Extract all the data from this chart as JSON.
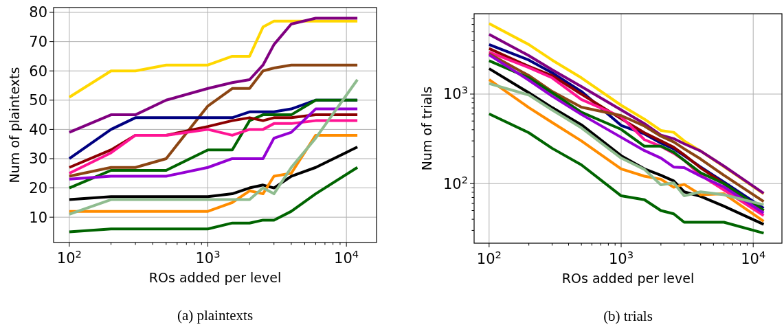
{
  "chart_data": [
    {
      "type": "line",
      "title": "(a) plaintexts",
      "xlabel": "ROs added per level",
      "ylabel": "Num of plaintexts",
      "log": "x",
      "grid": true,
      "marker": "none",
      "line_style": "solid",
      "x": [
        100,
        200,
        300,
        500,
        1000,
        1500,
        2000,
        2500,
        3000,
        4000,
        6000,
        12000
      ],
      "xlim": [
        77,
        16500
      ],
      "ylim": [
        1.35,
        81.65
      ],
      "xticks": [
        {
          "value": 100,
          "label": "10$^{2}$"
        },
        {
          "value": 200,
          "label": null
        },
        {
          "value": 300,
          "label": null
        },
        {
          "value": 400,
          "label": null
        },
        {
          "value": 500,
          "label": null
        },
        {
          "value": 600,
          "label": null
        },
        {
          "value": 700,
          "label": null
        },
        {
          "value": 800,
          "label": null
        },
        {
          "value": 900,
          "label": null
        },
        {
          "value": 1000,
          "label": "10$^{3}$"
        },
        {
          "value": 2000,
          "label": null
        },
        {
          "value": 3000,
          "label": null
        },
        {
          "value": 4000,
          "label": null
        },
        {
          "value": 5000,
          "label": null
        },
        {
          "value": 6000,
          "label": null
        },
        {
          "value": 7000,
          "label": null
        },
        {
          "value": 8000,
          "label": null
        },
        {
          "value": 9000,
          "label": null
        },
        {
          "value": 10000,
          "label": "10$^{4}$"
        }
      ],
      "yticks": [
        10,
        20,
        30,
        40,
        50,
        60,
        70,
        80
      ],
      "series": [
        {
          "color": "#ffd700",
          "values": [
            51,
            60,
            60,
            62,
            62,
            65,
            65,
            75,
            77,
            77,
            77,
            77
          ]
        },
        {
          "color": "#800080",
          "values": [
            39,
            45,
            45,
            50,
            54,
            56,
            57,
            62,
            69,
            76,
            78,
            78
          ]
        },
        {
          "color": "#8b4513",
          "values": [
            24,
            27,
            27,
            30,
            48,
            54,
            54,
            60,
            61,
            62,
            62,
            62
          ]
        },
        {
          "color": "#000080",
          "values": [
            30,
            40,
            44,
            44,
            44,
            44,
            46,
            46,
            46,
            47,
            50,
            50
          ]
        },
        {
          "color": "#006400",
          "values": [
            20,
            26,
            26,
            26,
            33,
            33,
            43,
            45,
            45,
            45,
            50,
            50
          ]
        },
        {
          "color": "#8b0000",
          "values": [
            27,
            33,
            38,
            38,
            41,
            43,
            44,
            43,
            44,
            44,
            45,
            45
          ]
        },
        {
          "color": "#ff1493",
          "values": [
            25,
            32,
            38,
            38,
            40,
            38,
            40,
            40,
            42,
            42,
            43,
            43
          ]
        },
        {
          "color": "#9400d3",
          "values": [
            23,
            24,
            24,
            24,
            27,
            30,
            30,
            30,
            37,
            39,
            47,
            47
          ]
        },
        {
          "color": "#000000",
          "values": [
            16,
            17,
            17,
            17,
            17,
            18,
            20,
            21,
            20,
            24,
            27,
            34
          ]
        },
        {
          "color": "#ff8c00",
          "values": [
            12,
            12,
            12,
            12,
            12,
            15,
            19,
            18,
            24,
            25,
            38,
            38
          ]
        },
        {
          "color": "#8fbc8f",
          "values": [
            11,
            16,
            16,
            16,
            16,
            16,
            16,
            20,
            18,
            27,
            37,
            57
          ]
        },
        {
          "color": "#006400",
          "values": [
            5,
            6,
            6,
            6,
            6,
            8,
            8,
            9,
            9,
            12,
            18,
            27
          ]
        }
      ]
    },
    {
      "type": "line",
      "title": "(b) trials",
      "xlabel": "ROs added per level",
      "ylabel": "Num of trials",
      "log": "xy",
      "grid": true,
      "marker": "none",
      "line_style": "solid",
      "x": [
        100,
        200,
        300,
        500,
        1000,
        1500,
        2000,
        2500,
        3000,
        4000,
        6000,
        12000
      ],
      "xlim": [
        77,
        16500
      ],
      "ylim": [
        21.6,
        7900
      ],
      "xticks": [
        {
          "value": 100,
          "label": "10$^{2}$"
        },
        {
          "value": 200,
          "label": null
        },
        {
          "value": 300,
          "label": null
        },
        {
          "value": 400,
          "label": null
        },
        {
          "value": 500,
          "label": null
        },
        {
          "value": 600,
          "label": null
        },
        {
          "value": 700,
          "label": null
        },
        {
          "value": 800,
          "label": null
        },
        {
          "value": 900,
          "label": null
        },
        {
          "value": 1000,
          "label": "10$^{3}$"
        },
        {
          "value": 2000,
          "label": null
        },
        {
          "value": 3000,
          "label": null
        },
        {
          "value": 4000,
          "label": null
        },
        {
          "value": 5000,
          "label": null
        },
        {
          "value": 6000,
          "label": null
        },
        {
          "value": 7000,
          "label": null
        },
        {
          "value": 8000,
          "label": null
        },
        {
          "value": 9000,
          "label": null
        },
        {
          "value": 10000,
          "label": "10$^{4}$"
        }
      ],
      "yticks": [
        {
          "value": 30,
          "label": null
        },
        {
          "value": 40,
          "label": null
        },
        {
          "value": 50,
          "label": null
        },
        {
          "value": 60,
          "label": null
        },
        {
          "value": 70,
          "label": null
        },
        {
          "value": 80,
          "label": null
        },
        {
          "value": 90,
          "label": null
        },
        {
          "value": 100,
          "label": "10$^{2}$"
        },
        {
          "value": 200,
          "label": null
        },
        {
          "value": 300,
          "label": null
        },
        {
          "value": 400,
          "label": null
        },
        {
          "value": 500,
          "label": null
        },
        {
          "value": 600,
          "label": null
        },
        {
          "value": 700,
          "label": null
        },
        {
          "value": 800,
          "label": null
        },
        {
          "value": 900,
          "label": null
        },
        {
          "value": 1000,
          "label": "10$^{3}$"
        },
        {
          "value": 2000,
          "label": null
        },
        {
          "value": 3000,
          "label": null
        },
        {
          "value": 4000,
          "label": null
        },
        {
          "value": 5000,
          "label": null
        },
        {
          "value": 6000,
          "label": null
        },
        {
          "value": 7000,
          "label": null
        }
      ],
      "series": [
        {
          "color": "#ffd700",
          "values": [
            6150,
            3575,
            2400,
            1520,
            750,
            525,
            392,
            374,
            300,
            231,
            155,
            77
          ]
        },
        {
          "color": "#800080",
          "values": [
            4650,
            2690,
            1870,
            1215,
            665,
            468,
            348,
            318,
            279,
            231,
            157,
            78
          ]
        },
        {
          "color": "#000080",
          "values": [
            3575,
            2400,
            1730,
            1070,
            447,
            359,
            284,
            245,
            205,
            153,
            104,
            53
          ]
        },
        {
          "color": "#8b0000",
          "values": [
            3230,
            2040,
            1610,
            1000,
            530,
            370,
            300,
            255,
            210,
            150,
            100,
            50
          ]
        },
        {
          "color": "#ff1493",
          "values": [
            2940,
            1980,
            1520,
            870,
            558,
            310,
            260,
            218,
            182,
            124,
            85,
            44
          ]
        },
        {
          "color": "#8b4513",
          "values": [
            2820,
            1610,
            1070,
            715,
            575,
            440,
            339,
            292,
            245,
            188,
            124,
            63
          ]
        },
        {
          "color": "#006400",
          "values": [
            2360,
            1520,
            1035,
            628,
            404,
            262,
            262,
            224,
            182,
            132,
            100,
            50
          ]
        },
        {
          "color": "#9400d3",
          "values": [
            2740,
            1430,
            950,
            592,
            329,
            234,
            193,
            153,
            151,
            121,
            92,
            47
          ]
        },
        {
          "color": "#000000",
          "values": [
            1925,
            1035,
            707,
            454,
            205,
            146,
            124,
            107,
            81,
            72,
            56,
            35
          ]
        },
        {
          "color": "#ff8c00",
          "values": [
            1450,
            707,
            482,
            300,
            146,
            121,
            112,
            91,
            98,
            75,
            77,
            38
          ]
        },
        {
          "color": "#8fbc8f",
          "values": [
            1310,
            977,
            665,
            420,
            193,
            144,
            97,
            102,
            73,
            81,
            75,
            58
          ]
        },
        {
          "color": "#006400",
          "values": [
            602,
            370,
            248,
            162,
            73,
            66,
            50,
            46,
            37,
            37,
            37,
            28
          ]
        }
      ]
    }
  ]
}
